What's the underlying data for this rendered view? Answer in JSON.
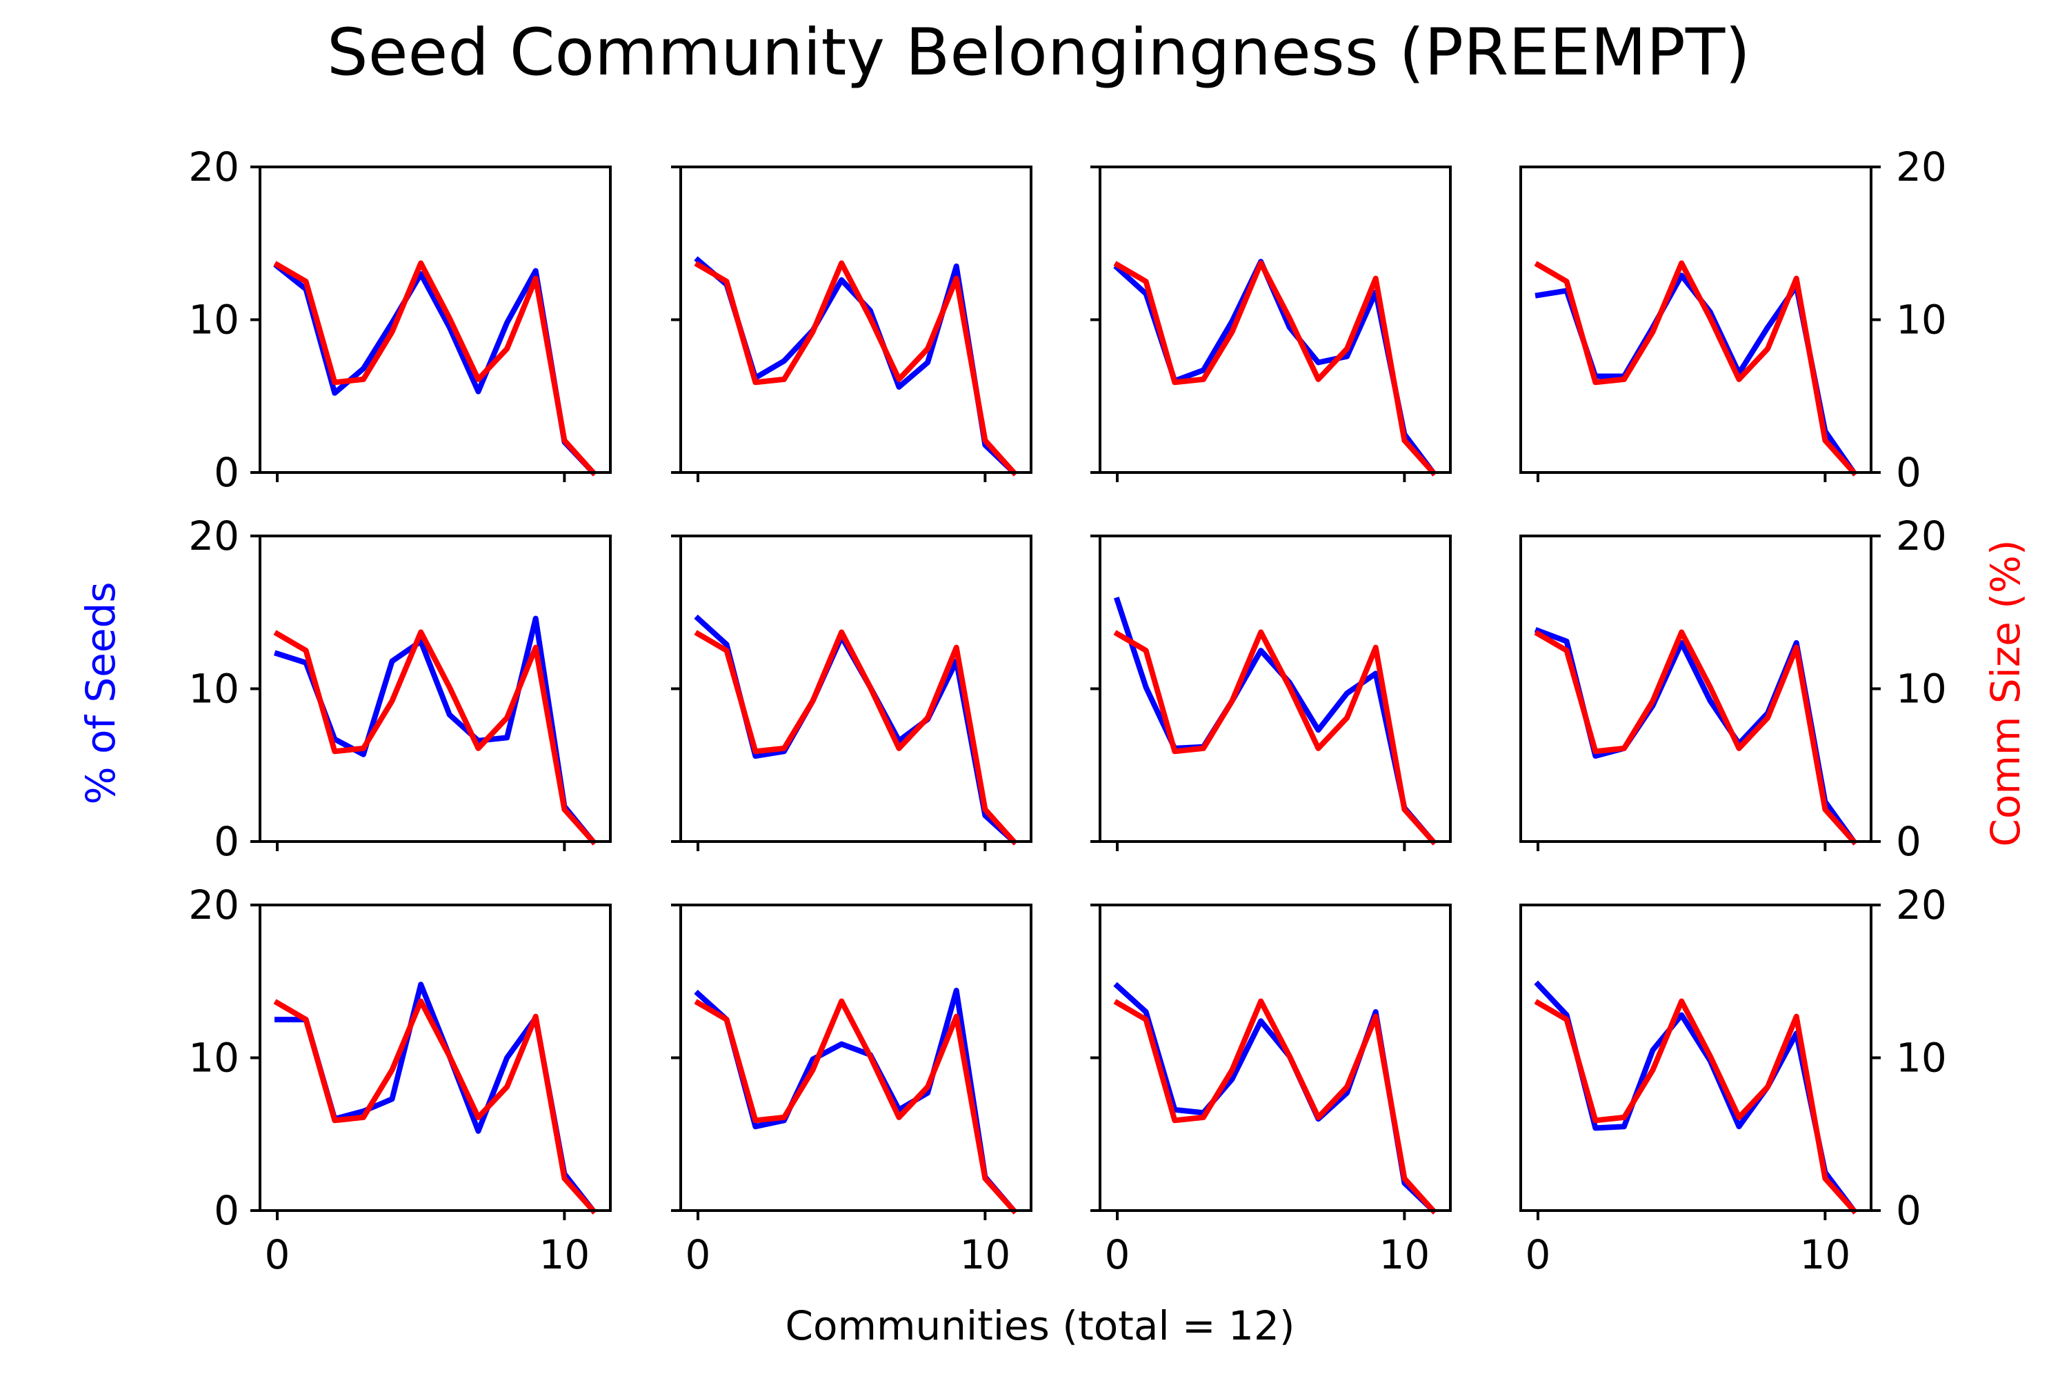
{
  "figure": {
    "title": "Seed Community Belongingness (PREEMPT)",
    "xlabel": "Communities (total = 12)",
    "ylabel_left": "% of Seeds",
    "ylabel_right": "Comm Size (%)",
    "colors": {
      "seeds": "#0000ff",
      "comm_size": "#ff0000",
      "axes": "#000000",
      "background": "#ffffff"
    }
  },
  "chart_data": [
    {
      "type": "line",
      "x": [
        0,
        1,
        2,
        3,
        4,
        5,
        6,
        7,
        8,
        9,
        10,
        11
      ],
      "xlim": [
        -0.6,
        11.6
      ],
      "ylim": [
        0,
        20
      ],
      "xticks": [
        0,
        10
      ],
      "yticks": [
        0,
        10,
        20
      ],
      "grid": false,
      "series": [
        {
          "name": "% of Seeds",
          "values": [
            13.5,
            12.0,
            5.2,
            6.8,
            9.8,
            13.0,
            9.5,
            5.3,
            9.8,
            13.2,
            2.0,
            0.0
          ]
        },
        {
          "name": "Comm Size (%)",
          "values": [
            13.6,
            12.5,
            5.9,
            6.1,
            9.2,
            13.7,
            10.1,
            6.1,
            8.1,
            12.7,
            2.1,
            0.0
          ]
        }
      ]
    },
    {
      "type": "line",
      "x": [
        0,
        1,
        2,
        3,
        4,
        5,
        6,
        7,
        8,
        9,
        10,
        11
      ],
      "xlim": [
        -0.6,
        11.6
      ],
      "ylim": [
        0,
        20
      ],
      "xticks": [
        0,
        10
      ],
      "yticks": [
        0,
        10,
        20
      ],
      "grid": false,
      "series": [
        {
          "name": "% of Seeds",
          "values": [
            13.9,
            12.3,
            6.2,
            7.3,
            9.3,
            12.6,
            10.6,
            5.6,
            7.2,
            13.5,
            1.8,
            0.0
          ]
        },
        {
          "name": "Comm Size (%)",
          "values": [
            13.6,
            12.5,
            5.9,
            6.1,
            9.2,
            13.7,
            10.1,
            6.1,
            8.1,
            12.7,
            2.1,
            0.0
          ]
        }
      ]
    },
    {
      "type": "line",
      "x": [
        0,
        1,
        2,
        3,
        4,
        5,
        6,
        7,
        8,
        9,
        10,
        11
      ],
      "xlim": [
        -0.6,
        11.6
      ],
      "ylim": [
        0,
        20
      ],
      "xticks": [
        0,
        10
      ],
      "yticks": [
        0,
        10,
        20
      ],
      "grid": false,
      "series": [
        {
          "name": "% of Seeds",
          "values": [
            13.4,
            11.7,
            6.0,
            6.7,
            9.9,
            13.8,
            9.5,
            7.2,
            7.6,
            11.8,
            2.5,
            0.0
          ]
        },
        {
          "name": "Comm Size (%)",
          "values": [
            13.6,
            12.5,
            5.9,
            6.1,
            9.2,
            13.7,
            10.1,
            6.1,
            8.1,
            12.7,
            2.1,
            0.0
          ]
        }
      ]
    },
    {
      "type": "line",
      "x": [
        0,
        1,
        2,
        3,
        4,
        5,
        6,
        7,
        8,
        9,
        10,
        11
      ],
      "xlim": [
        -0.6,
        11.6
      ],
      "ylim": [
        0,
        20
      ],
      "xticks": [
        0,
        10
      ],
      "yticks": [
        0,
        10,
        20
      ],
      "grid": false,
      "series": [
        {
          "name": "% of Seeds",
          "values": [
            11.6,
            11.9,
            6.3,
            6.3,
            9.5,
            12.9,
            10.5,
            6.5,
            9.5,
            12.2,
            2.7,
            0.0
          ]
        },
        {
          "name": "Comm Size (%)",
          "values": [
            13.6,
            12.5,
            5.9,
            6.1,
            9.2,
            13.7,
            10.1,
            6.1,
            8.1,
            12.7,
            2.1,
            0.0
          ]
        }
      ]
    },
    {
      "type": "line",
      "x": [
        0,
        1,
        2,
        3,
        4,
        5,
        6,
        7,
        8,
        9,
        10,
        11
      ],
      "xlim": [
        -0.6,
        11.6
      ],
      "ylim": [
        0,
        20
      ],
      "xticks": [
        0,
        10
      ],
      "yticks": [
        0,
        10,
        20
      ],
      "grid": false,
      "series": [
        {
          "name": "% of Seeds",
          "values": [
            12.3,
            11.7,
            6.7,
            5.7,
            11.8,
            13.1,
            8.3,
            6.6,
            6.8,
            14.6,
            2.3,
            0.0
          ]
        },
        {
          "name": "Comm Size (%)",
          "values": [
            13.6,
            12.5,
            5.9,
            6.1,
            9.2,
            13.7,
            10.1,
            6.1,
            8.1,
            12.7,
            2.1,
            0.0
          ]
        }
      ]
    },
    {
      "type": "line",
      "x": [
        0,
        1,
        2,
        3,
        4,
        5,
        6,
        7,
        8,
        9,
        10,
        11
      ],
      "xlim": [
        -0.6,
        11.6
      ],
      "ylim": [
        0,
        20
      ],
      "xticks": [
        0,
        10
      ],
      "yticks": [
        0,
        10,
        20
      ],
      "grid": false,
      "series": [
        {
          "name": "% of Seeds",
          "values": [
            14.6,
            12.9,
            5.6,
            5.9,
            9.2,
            13.4,
            10.1,
            6.6,
            8.0,
            11.8,
            1.7,
            0.0
          ]
        },
        {
          "name": "Comm Size (%)",
          "values": [
            13.6,
            12.5,
            5.9,
            6.1,
            9.2,
            13.7,
            10.1,
            6.1,
            8.1,
            12.7,
            2.1,
            0.0
          ]
        }
      ]
    },
    {
      "type": "line",
      "x": [
        0,
        1,
        2,
        3,
        4,
        5,
        6,
        7,
        8,
        9,
        10,
        11
      ],
      "xlim": [
        -0.6,
        11.6
      ],
      "ylim": [
        0,
        20
      ],
      "xticks": [
        0,
        10
      ],
      "yticks": [
        0,
        10,
        20
      ],
      "grid": false,
      "series": [
        {
          "name": "% of Seeds",
          "values": [
            15.8,
            10.1,
            6.1,
            6.2,
            9.2,
            12.5,
            10.4,
            7.3,
            9.7,
            11.0,
            2.2,
            0.0
          ]
        },
        {
          "name": "Comm Size (%)",
          "values": [
            13.6,
            12.5,
            5.9,
            6.1,
            9.2,
            13.7,
            10.1,
            6.1,
            8.1,
            12.7,
            2.1,
            0.0
          ]
        }
      ]
    },
    {
      "type": "line",
      "x": [
        0,
        1,
        2,
        3,
        4,
        5,
        6,
        7,
        8,
        9,
        10,
        11
      ],
      "xlim": [
        -0.6,
        11.6
      ],
      "ylim": [
        0,
        20
      ],
      "xticks": [
        0,
        10
      ],
      "yticks": [
        0,
        10,
        20
      ],
      "grid": false,
      "series": [
        {
          "name": "% of Seeds",
          "values": [
            13.8,
            13.1,
            5.6,
            6.1,
            8.9,
            13.0,
            9.2,
            6.4,
            8.4,
            13.0,
            2.6,
            0.0
          ]
        },
        {
          "name": "Comm Size (%)",
          "values": [
            13.6,
            12.5,
            5.9,
            6.1,
            9.2,
            13.7,
            10.1,
            6.1,
            8.1,
            12.7,
            2.1,
            0.0
          ]
        }
      ]
    },
    {
      "type": "line",
      "x": [
        0,
        1,
        2,
        3,
        4,
        5,
        6,
        7,
        8,
        9,
        10,
        11
      ],
      "xlim": [
        -0.6,
        11.6
      ],
      "ylim": [
        0,
        20
      ],
      "xticks": [
        0,
        10
      ],
      "yticks": [
        0,
        10,
        20
      ],
      "grid": false,
      "series": [
        {
          "name": "% of Seeds",
          "values": [
            12.5,
            12.5,
            6.0,
            6.5,
            7.3,
            14.8,
            10.1,
            5.2,
            10.0,
            12.6,
            2.4,
            0.0
          ]
        },
        {
          "name": "Comm Size (%)",
          "values": [
            13.6,
            12.5,
            5.9,
            6.1,
            9.2,
            13.7,
            10.1,
            6.1,
            8.1,
            12.7,
            2.1,
            0.0
          ]
        }
      ]
    },
    {
      "type": "line",
      "x": [
        0,
        1,
        2,
        3,
        4,
        5,
        6,
        7,
        8,
        9,
        10,
        11
      ],
      "xlim": [
        -0.6,
        11.6
      ],
      "ylim": [
        0,
        20
      ],
      "xticks": [
        0,
        10
      ],
      "yticks": [
        0,
        10,
        20
      ],
      "grid": false,
      "series": [
        {
          "name": "% of Seeds",
          "values": [
            14.2,
            12.5,
            5.5,
            5.9,
            9.9,
            10.9,
            10.2,
            6.6,
            7.7,
            14.4,
            2.2,
            0.0
          ]
        },
        {
          "name": "Comm Size (%)",
          "values": [
            13.6,
            12.5,
            5.9,
            6.1,
            9.2,
            13.7,
            10.1,
            6.1,
            8.1,
            12.7,
            2.1,
            0.0
          ]
        }
      ]
    },
    {
      "type": "line",
      "x": [
        0,
        1,
        2,
        3,
        4,
        5,
        6,
        7,
        8,
        9,
        10,
        11
      ],
      "xlim": [
        -0.6,
        11.6
      ],
      "ylim": [
        0,
        20
      ],
      "xticks": [
        0,
        10
      ],
      "yticks": [
        0,
        10,
        20
      ],
      "grid": false,
      "series": [
        {
          "name": "% of Seeds",
          "values": [
            14.7,
            13.0,
            6.6,
            6.4,
            8.6,
            12.4,
            10.1,
            6.0,
            7.7,
            13.0,
            1.8,
            0.0
          ]
        },
        {
          "name": "Comm Size (%)",
          "values": [
            13.6,
            12.5,
            5.9,
            6.1,
            9.2,
            13.7,
            10.1,
            6.1,
            8.1,
            12.7,
            2.1,
            0.0
          ]
        }
      ]
    },
    {
      "type": "line",
      "x": [
        0,
        1,
        2,
        3,
        4,
        5,
        6,
        7,
        8,
        9,
        10,
        11
      ],
      "xlim": [
        -0.6,
        11.6
      ],
      "ylim": [
        0,
        20
      ],
      "xticks": [
        0,
        10
      ],
      "yticks": [
        0,
        10,
        20
      ],
      "grid": false,
      "series": [
        {
          "name": "% of Seeds",
          "values": [
            14.8,
            12.8,
            5.4,
            5.5,
            10.5,
            12.8,
            9.8,
            5.5,
            8.1,
            11.6,
            2.5,
            0.0
          ]
        },
        {
          "name": "Comm Size (%)",
          "values": [
            13.6,
            12.5,
            5.9,
            6.1,
            9.2,
            13.7,
            10.1,
            6.1,
            8.1,
            12.7,
            2.1,
            0.0
          ]
        }
      ]
    }
  ]
}
